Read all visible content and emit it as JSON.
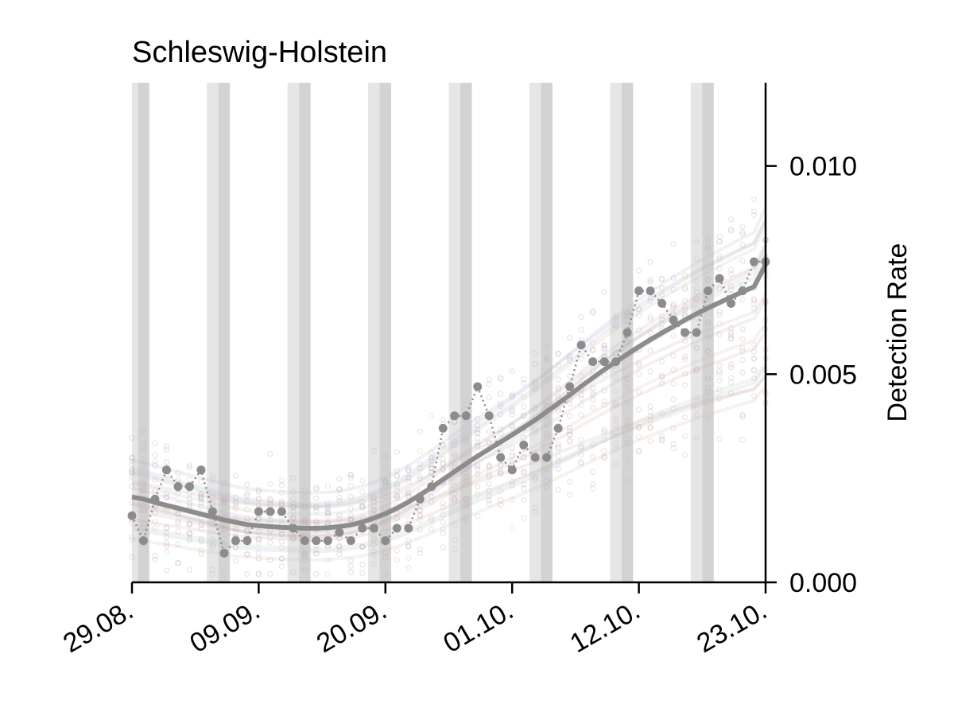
{
  "chart_data": {
    "type": "line",
    "title": "Schleswig-Holstein",
    "ylabel": "Detection Rate",
    "xlabel": "",
    "x_start": "29.08.",
    "x_end": "23.10.",
    "ylim": [
      0.0,
      0.012
    ],
    "y_axis_side": "right",
    "x_ticks": [
      "29.08.",
      "09.09.",
      "20.09.",
      "01.10.",
      "12.10.",
      "23.10."
    ],
    "y_ticks": [
      "0.000",
      "0.005",
      "0.010"
    ],
    "weekend_bands": [
      {
        "sat": "29.08.",
        "sun": "30.08."
      },
      {
        "sat": "05.09.",
        "sun": "06.09."
      },
      {
        "sat": "12.09.",
        "sun": "13.09."
      },
      {
        "sat": "19.09.",
        "sun": "20.09."
      },
      {
        "sat": "26.09.",
        "sun": "27.09."
      },
      {
        "sat": "03.10.",
        "sun": "04.10."
      },
      {
        "sat": "10.10.",
        "sun": "11.10."
      },
      {
        "sat": "17.10.",
        "sun": "18.10."
      }
    ],
    "series": [
      {
        "dates": [
          "29.08.",
          "30.08.",
          "31.08.",
          "01.09.",
          "02.09.",
          "03.09.",
          "04.09.",
          "05.09.",
          "06.09.",
          "07.09.",
          "08.09.",
          "09.09.",
          "10.09.",
          "11.09.",
          "12.09.",
          "13.09.",
          "14.09.",
          "15.09.",
          "16.09.",
          "17.09.",
          "18.09.",
          "19.09.",
          "20.09.",
          "21.09.",
          "22.09.",
          "23.09.",
          "24.09.",
          "25.09.",
          "26.09.",
          "27.09.",
          "28.09.",
          "29.09.",
          "30.09.",
          "01.10.",
          "02.10.",
          "03.10.",
          "04.10.",
          "05.10.",
          "06.10.",
          "07.10.",
          "08.10.",
          "09.10.",
          "10.10.",
          "11.10.",
          "12.10.",
          "13.10.",
          "14.10.",
          "15.10.",
          "16.10.",
          "17.10.",
          "18.10.",
          "19.10.",
          "20.10.",
          "21.10.",
          "22.10.",
          "23.10."
        ],
        "raw": [
          0.0016,
          0.001,
          0.002,
          0.0027,
          0.0023,
          0.0023,
          0.0027,
          0.0017,
          0.0007,
          0.001,
          0.001,
          0.0017,
          0.0017,
          0.0017,
          0.0013,
          0.001,
          0.001,
          0.001,
          0.0012,
          0.001,
          0.0013,
          0.0013,
          0.001,
          0.0013,
          0.0013,
          0.002,
          0.0023,
          0.0037,
          0.004,
          0.004,
          0.0047,
          0.004,
          0.003,
          0.0027,
          0.0033,
          0.003,
          0.003,
          0.0037,
          0.0047,
          0.0057,
          0.0053,
          0.0053,
          0.0053,
          0.006,
          0.007,
          0.007,
          0.0067,
          0.0063,
          0.006,
          0.006,
          0.007,
          0.0073,
          0.0067,
          0.007,
          0.0077,
          0.0077
        ],
        "smoothed": [
          0.00205,
          0.002,
          0.00192,
          0.00185,
          0.00178,
          0.00171,
          0.00164,
          0.00157,
          0.0015,
          0.00144,
          0.00139,
          0.00136,
          0.00134,
          0.00132,
          0.00131,
          0.0013,
          0.0013,
          0.00131,
          0.00134,
          0.00138,
          0.00145,
          0.00154,
          0.00165,
          0.00178,
          0.00193,
          0.0021,
          0.00228,
          0.00247,
          0.00266,
          0.00285,
          0.00303,
          0.0032,
          0.00337,
          0.00354,
          0.00372,
          0.0039,
          0.0041,
          0.0043,
          0.0045,
          0.00471,
          0.00491,
          0.00511,
          0.0053,
          0.00548,
          0.00566,
          0.00583,
          0.00599,
          0.00615,
          0.0063,
          0.00645,
          0.00659,
          0.00672,
          0.00685,
          0.00698,
          0.0071,
          0.00763
        ],
        "color": "#8c8c8c"
      }
    ]
  },
  "colors": {
    "highlight_series": "#8c8c8c",
    "weekend_saturday": "#e6e6e6",
    "weekend_sunday": "#d3d3d3",
    "background_series": [
      "#c9a7a2",
      "#b9aec9",
      "#b7c6a6",
      "#cdb8a0",
      "#a9b9c9",
      "#c9a9bd"
    ]
  }
}
